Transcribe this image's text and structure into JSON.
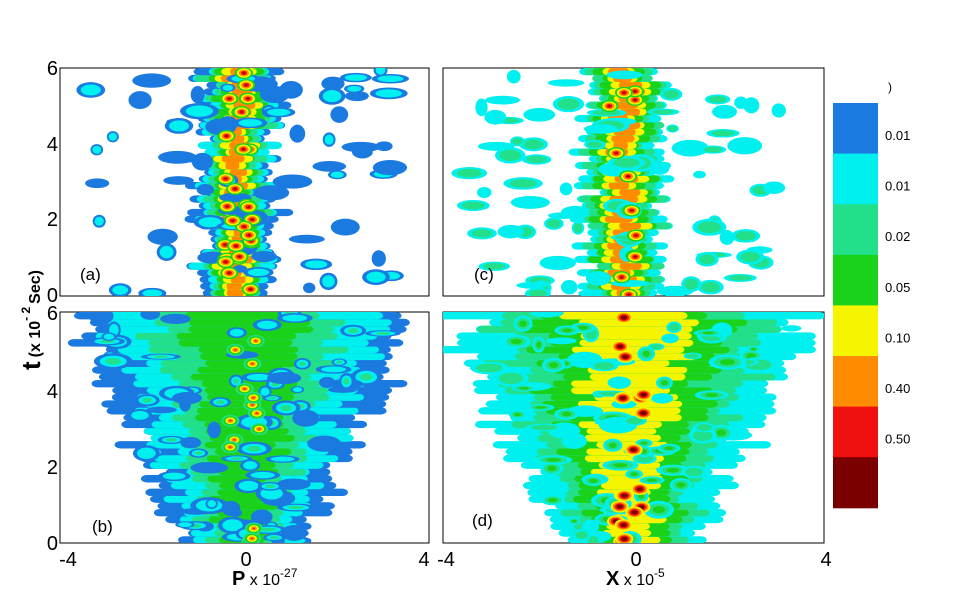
{
  "chart_data": {
    "type": "heatmap",
    "shared_y_axis_label": {
      "main": "t",
      "prefix": "(x 10",
      "exponent": "- 2",
      "unit": "Sec)"
    },
    "x_axis_labels": {
      "left": {
        "symbol": "P",
        "text": " x 10",
        "exponent": "-27"
      },
      "right": {
        "symbol": "X",
        "text": " x 10",
        "exponent": "-5"
      }
    },
    "x_range": [
      -4,
      4
    ],
    "y_range": [
      0,
      6
    ],
    "x_ticks": [
      "-4",
      "0",
      "4"
    ],
    "y_ticks": [
      "0",
      "2",
      "4",
      "6"
    ],
    "panels": [
      {
        "id": "a",
        "label": "(a)",
        "x_axis": "P",
        "spread": "narrow"
      },
      {
        "id": "b",
        "label": "(b)",
        "x_axis": "P",
        "spread": "wide"
      },
      {
        "id": "c",
        "label": "(c)",
        "x_axis": "X",
        "spread": "narrow"
      },
      {
        "id": "d",
        "label": "(d)",
        "x_axis": "X",
        "spread": "wide"
      }
    ],
    "colorbar": {
      "top_label": ")",
      "levels": [
        {
          "color": "#1a7ae0",
          "label": "0.01"
        },
        {
          "color": "#00f0f0",
          "label": "0.01"
        },
        {
          "color": "#22e08a",
          "label": "0.02"
        },
        {
          "color": "#1ad21a",
          "label": "0.05"
        },
        {
          "color": "#f5f500",
          "label": "0.10"
        },
        {
          "color": "#ff8c00",
          "label": "0.40"
        },
        {
          "color": "#f01010",
          "label": "0.50"
        },
        {
          "color": "#7a0000",
          "label": ""
        }
      ]
    }
  }
}
